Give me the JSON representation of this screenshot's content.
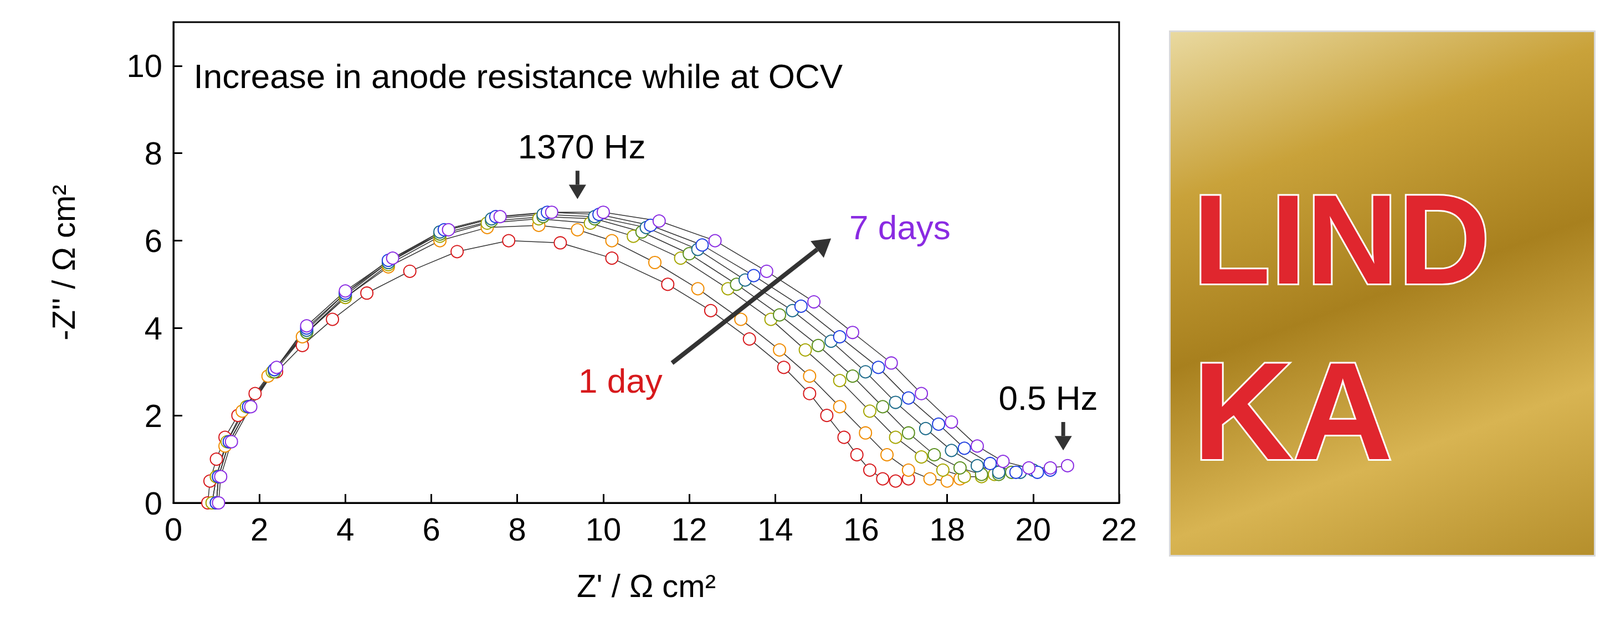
{
  "chart_data": {
    "type": "scatter",
    "title": "Increase in anode resistance while at OCV",
    "x_label": "Z' / Ω cm²",
    "y_label": "-Z'' / Ω cm²",
    "xlim": [
      0,
      22
    ],
    "xticks": [
      0,
      2,
      4,
      6,
      8,
      10,
      12,
      14,
      16,
      18,
      20,
      22
    ],
    "ylim": [
      0,
      11
    ],
    "yticks": [
      0,
      2,
      4,
      6,
      8,
      10
    ],
    "grid": false,
    "marker": "open_circle",
    "line_style": "solid",
    "annotations": [
      "1370 Hz",
      "0.5 Hz",
      "1 day",
      "7 days"
    ],
    "series": [
      {
        "color": "#d7191c",
        "x": [
          0.8,
          0.85,
          1.0,
          1.2,
          1.5,
          1.9,
          2.4,
          3.0,
          3.7,
          4.5,
          5.5,
          6.6,
          7.8,
          9.0,
          10.2,
          11.5,
          12.5,
          13.4,
          14.2,
          14.8,
          15.2,
          15.6,
          15.9,
          16.2,
          16.5,
          16.8,
          17.1
        ],
        "values": [
          0,
          0.5,
          1.0,
          1.5,
          2.0,
          2.5,
          3.0,
          3.6,
          4.2,
          4.8,
          5.3,
          5.75,
          6.0,
          5.95,
          5.6,
          5.0,
          4.4,
          3.75,
          3.1,
          2.5,
          2.0,
          1.5,
          1.1,
          0.75,
          0.55,
          0.5,
          0.55
        ]
      },
      {
        "color": "#f08c00",
        "x": [
          0.9,
          1.0,
          1.2,
          1.6,
          2.2,
          3.0,
          4.0,
          5.0,
          6.2,
          7.3,
          8.5,
          9.4,
          10.2,
          11.2,
          12.2,
          13.2,
          14.1,
          14.8,
          15.5,
          16.1,
          16.6,
          17.1,
          17.6,
          18.0,
          18.3
        ],
        "values": [
          0,
          0.6,
          1.3,
          2.1,
          2.9,
          3.8,
          4.7,
          5.4,
          6.0,
          6.3,
          6.35,
          6.25,
          6.0,
          5.5,
          4.9,
          4.2,
          3.5,
          2.9,
          2.2,
          1.6,
          1.1,
          0.75,
          0.55,
          0.5,
          0.55
        ]
      },
      {
        "color": "#a6a600",
        "x": [
          0.9,
          1.0,
          1.25,
          1.7,
          2.3,
          3.1,
          4.0,
          5.0,
          6.2,
          7.3,
          8.5,
          9.7,
          10.7,
          11.8,
          12.9,
          13.9,
          14.7,
          15.5,
          16.2,
          16.8,
          17.4,
          17.9,
          18.4,
          18.8,
          19.1
        ],
        "values": [
          0,
          0.6,
          1.4,
          2.2,
          3.0,
          3.9,
          4.7,
          5.45,
          6.1,
          6.4,
          6.5,
          6.4,
          6.1,
          5.6,
          4.9,
          4.2,
          3.5,
          2.8,
          2.1,
          1.5,
          1.05,
          0.75,
          0.6,
          0.6,
          0.65
        ]
      },
      {
        "color": "#5a8f1e",
        "x": [
          1.0,
          1.05,
          1.3,
          1.75,
          2.35,
          3.1,
          4.0,
          5.0,
          6.2,
          7.4,
          8.6,
          9.8,
          10.9,
          12.0,
          13.1,
          14.1,
          15.0,
          15.8,
          16.5,
          17.1,
          17.7,
          18.3,
          18.8,
          19.2,
          19.5
        ],
        "values": [
          0,
          0.6,
          1.4,
          2.2,
          3.0,
          3.9,
          4.75,
          5.5,
          6.15,
          6.45,
          6.55,
          6.5,
          6.2,
          5.7,
          5.0,
          4.3,
          3.6,
          2.9,
          2.2,
          1.6,
          1.1,
          0.8,
          0.65,
          0.65,
          0.7
        ]
      },
      {
        "color": "#1b6a8a",
        "x": [
          1.0,
          1.05,
          1.3,
          1.75,
          2.35,
          3.1,
          4.0,
          5.0,
          6.2,
          7.4,
          8.6,
          9.8,
          11.0,
          12.2,
          13.3,
          14.4,
          15.3,
          16.1,
          16.8,
          17.5,
          18.1,
          18.7,
          19.2,
          19.7,
          20.0
        ],
        "values": [
          0,
          0.6,
          1.4,
          2.2,
          3.05,
          3.95,
          4.8,
          5.5,
          6.2,
          6.5,
          6.6,
          6.55,
          6.3,
          5.8,
          5.1,
          4.4,
          3.7,
          3.0,
          2.3,
          1.7,
          1.2,
          0.85,
          0.7,
          0.7,
          0.75
        ]
      },
      {
        "color": "#1f3fe0",
        "x": [
          1.0,
          1.05,
          1.3,
          1.75,
          2.35,
          3.1,
          4.0,
          5.0,
          6.3,
          7.5,
          8.7,
          9.9,
          11.1,
          12.3,
          13.5,
          14.6,
          15.5,
          16.4,
          17.1,
          17.8,
          18.4,
          19.0,
          19.6,
          20.1,
          20.4
        ],
        "values": [
          0,
          0.6,
          1.4,
          2.2,
          3.05,
          4.0,
          4.8,
          5.55,
          6.25,
          6.55,
          6.65,
          6.6,
          6.35,
          5.9,
          5.2,
          4.5,
          3.8,
          3.1,
          2.4,
          1.8,
          1.25,
          0.9,
          0.7,
          0.7,
          0.75
        ]
      },
      {
        "color": "#8a2be2",
        "x": [
          1.05,
          1.1,
          1.35,
          1.8,
          2.4,
          3.1,
          4.0,
          5.1,
          6.4,
          7.6,
          8.8,
          10.0,
          11.3,
          12.6,
          13.8,
          14.9,
          15.8,
          16.7,
          17.4,
          18.1,
          18.7,
          19.3,
          19.9,
          20.4,
          20.8
        ],
        "values": [
          0,
          0.6,
          1.4,
          2.2,
          3.1,
          4.05,
          4.85,
          5.6,
          6.25,
          6.55,
          6.65,
          6.65,
          6.45,
          6.0,
          5.3,
          4.6,
          3.9,
          3.2,
          2.5,
          1.85,
          1.3,
          0.95,
          0.8,
          0.8,
          0.85
        ]
      }
    ],
    "photo_texts": [
      "LIND",
      "KA"
    ]
  }
}
